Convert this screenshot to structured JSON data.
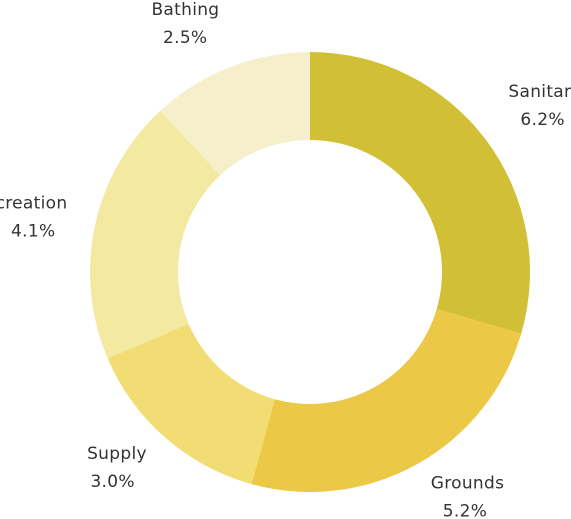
{
  "chart_data": {
    "type": "pie",
    "donut": true,
    "title": "",
    "categories": [
      "Sanitary",
      "Grounds",
      "Supply",
      "Recreation",
      "Bathing"
    ],
    "values": [
      6.2,
      5.2,
      3.0,
      4.1,
      2.5
    ],
    "value_labels": [
      "6.2%",
      "5.2%",
      "3.0%",
      "4.1%",
      "2.5%"
    ],
    "colors": [
      "#d1c036",
      "#ebc946",
      "#f2dc74",
      "#f4e9a0",
      "#f5efcc"
    ],
    "legend": "none",
    "start_angle": "top",
    "direction": "clockwise"
  }
}
